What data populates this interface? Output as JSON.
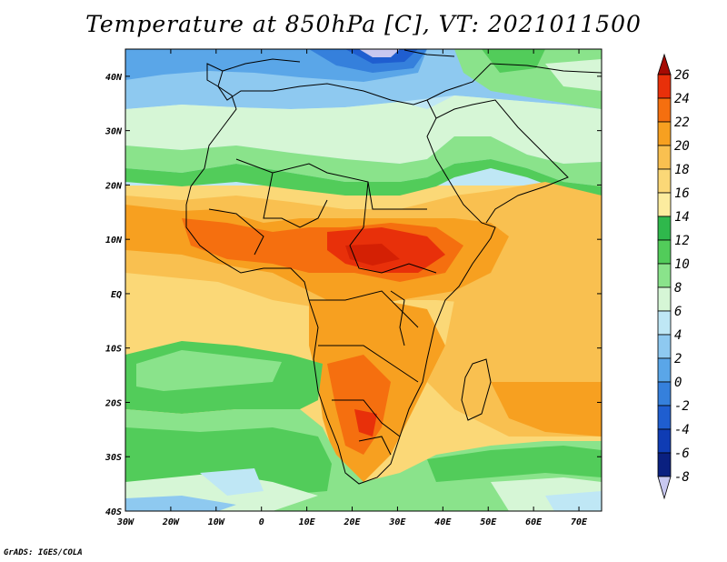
{
  "title": "Temperature at 850hPa [C], VT: 2021011500",
  "credit": "GrADS: IGES/COLA",
  "map": {
    "variable": "Temperature at 850hPa",
    "units": "C",
    "valid_time": "2021011500",
    "lon_range": [
      -30,
      75
    ],
    "lat_range": [
      -40,
      45
    ],
    "lon_ticks": [
      "30W",
      "20W",
      "10W",
      "0",
      "10E",
      "20E",
      "30E",
      "40E",
      "50E",
      "60E",
      "70E"
    ],
    "lat_ticks": [
      "40N",
      "30N",
      "20N",
      "10N",
      "EQ",
      "10S",
      "20S",
      "30S",
      "40S"
    ]
  },
  "colorbar": {
    "levels": [
      "26",
      "24",
      "22",
      "20",
      "18",
      "16",
      "14",
      "12",
      "10",
      "8",
      "6",
      "4",
      "2",
      "0",
      "-2",
      "-4",
      "-6",
      "-8"
    ],
    "colors": [
      "#a50a03",
      "#e8300a",
      "#f56f0f",
      "#f7a020",
      "#f9c050",
      "#fbd877",
      "#fcec9f",
      "#2fb84c",
      "#52cc5a",
      "#8ae38b",
      "#d6f6d6",
      "#bfe7f5",
      "#8ec9f0",
      "#5aa6e8",
      "#3580dc",
      "#1f5ed0",
      "#0f3cb4",
      "#0a2080",
      "#c8c8f0"
    ]
  }
}
